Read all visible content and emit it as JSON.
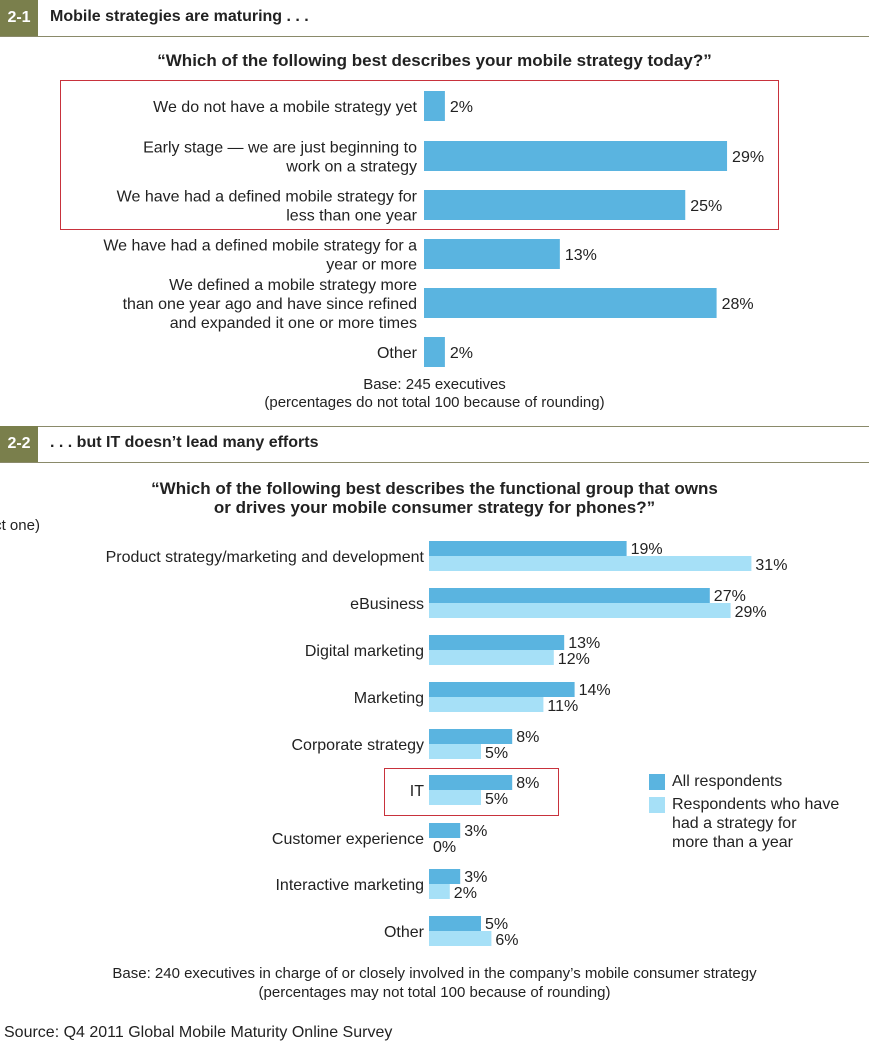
{
  "colors": {
    "all": "#5ab4e0",
    "longer": "#a6e0f7",
    "accent": "#7a7f4c",
    "highlight": "#c8323c"
  },
  "fig1": {
    "number": "2-1",
    "title": "Mobile strategies are maturing . . .",
    "question": "“Which of the following best describes your mobile strategy today?”",
    "base_line1": "Base: 245 executives",
    "base_line2": "(percentages do not total 100 because of rounding)"
  },
  "fig2": {
    "number": "2-2",
    "title": ". . . but IT doesn’t lead many efforts",
    "question_line1": "“Which of the following best describes the functional group that owns",
    "question_line2": "or drives your mobile consumer strategy for phones?”",
    "subtitle": "(Select one)",
    "legend_all": "All respondents",
    "legend_longer_1": "Respondents who have",
    "legend_longer_2": "had a strategy for",
    "legend_longer_3": "more than a year",
    "base_line1": "Base: 240 executives in charge of or closely involved in the company’s mobile consumer strategy",
    "base_line2": "(percentages may not total 100 because of rounding)"
  },
  "source": "Source: Q4 2011 Global Mobile Maturity Online Survey",
  "chart_data": [
    {
      "type": "bar",
      "orientation": "horizontal",
      "title": "Mobile strategies are maturing . . .",
      "categories": [
        [
          "We do not have a mobile strategy yet"
        ],
        [
          "Early stage — we are just beginning to",
          "work on a strategy"
        ],
        [
          "We have had a defined mobile strategy for",
          "less than one year"
        ],
        [
          "We have had a defined mobile strategy for a",
          "year or more"
        ],
        [
          "We defined a mobile strategy more",
          "than one year ago and have since refined",
          "and expanded it one or more times"
        ],
        [
          "Other"
        ]
      ],
      "values": [
        2,
        29,
        25,
        13,
        28,
        2
      ],
      "labels": [
        "2%",
        "29%",
        "25%",
        "13%",
        "28%",
        "2%"
      ],
      "highlighted_categories": [
        0,
        1,
        2
      ]
    },
    {
      "type": "bar",
      "orientation": "horizontal",
      "title": ". . . but IT doesn’t lead many efforts",
      "categories": [
        "Product strategy/marketing and development",
        "eBusiness",
        "Digital marketing",
        "Marketing",
        "Corporate strategy",
        "IT",
        "Customer experience",
        "Interactive marketing",
        "Other"
      ],
      "series": [
        {
          "name": "All respondents",
          "values": [
            19,
            27,
            13,
            14,
            8,
            8,
            3,
            3,
            5
          ],
          "labels": [
            "19%",
            "27%",
            "13%",
            "14%",
            "8%",
            "8%",
            "3%",
            "3%",
            "5%"
          ]
        },
        {
          "name": "Respondents who have had a strategy for more than a year",
          "values": [
            31,
            29,
            12,
            11,
            5,
            5,
            0,
            2,
            6
          ],
          "labels": [
            "31%",
            "29%",
            "12%",
            "11%",
            "5%",
            "5%",
            "0%",
            "2%",
            "6%"
          ]
        }
      ],
      "legend": "right",
      "highlighted_categories": [
        5
      ]
    }
  ]
}
